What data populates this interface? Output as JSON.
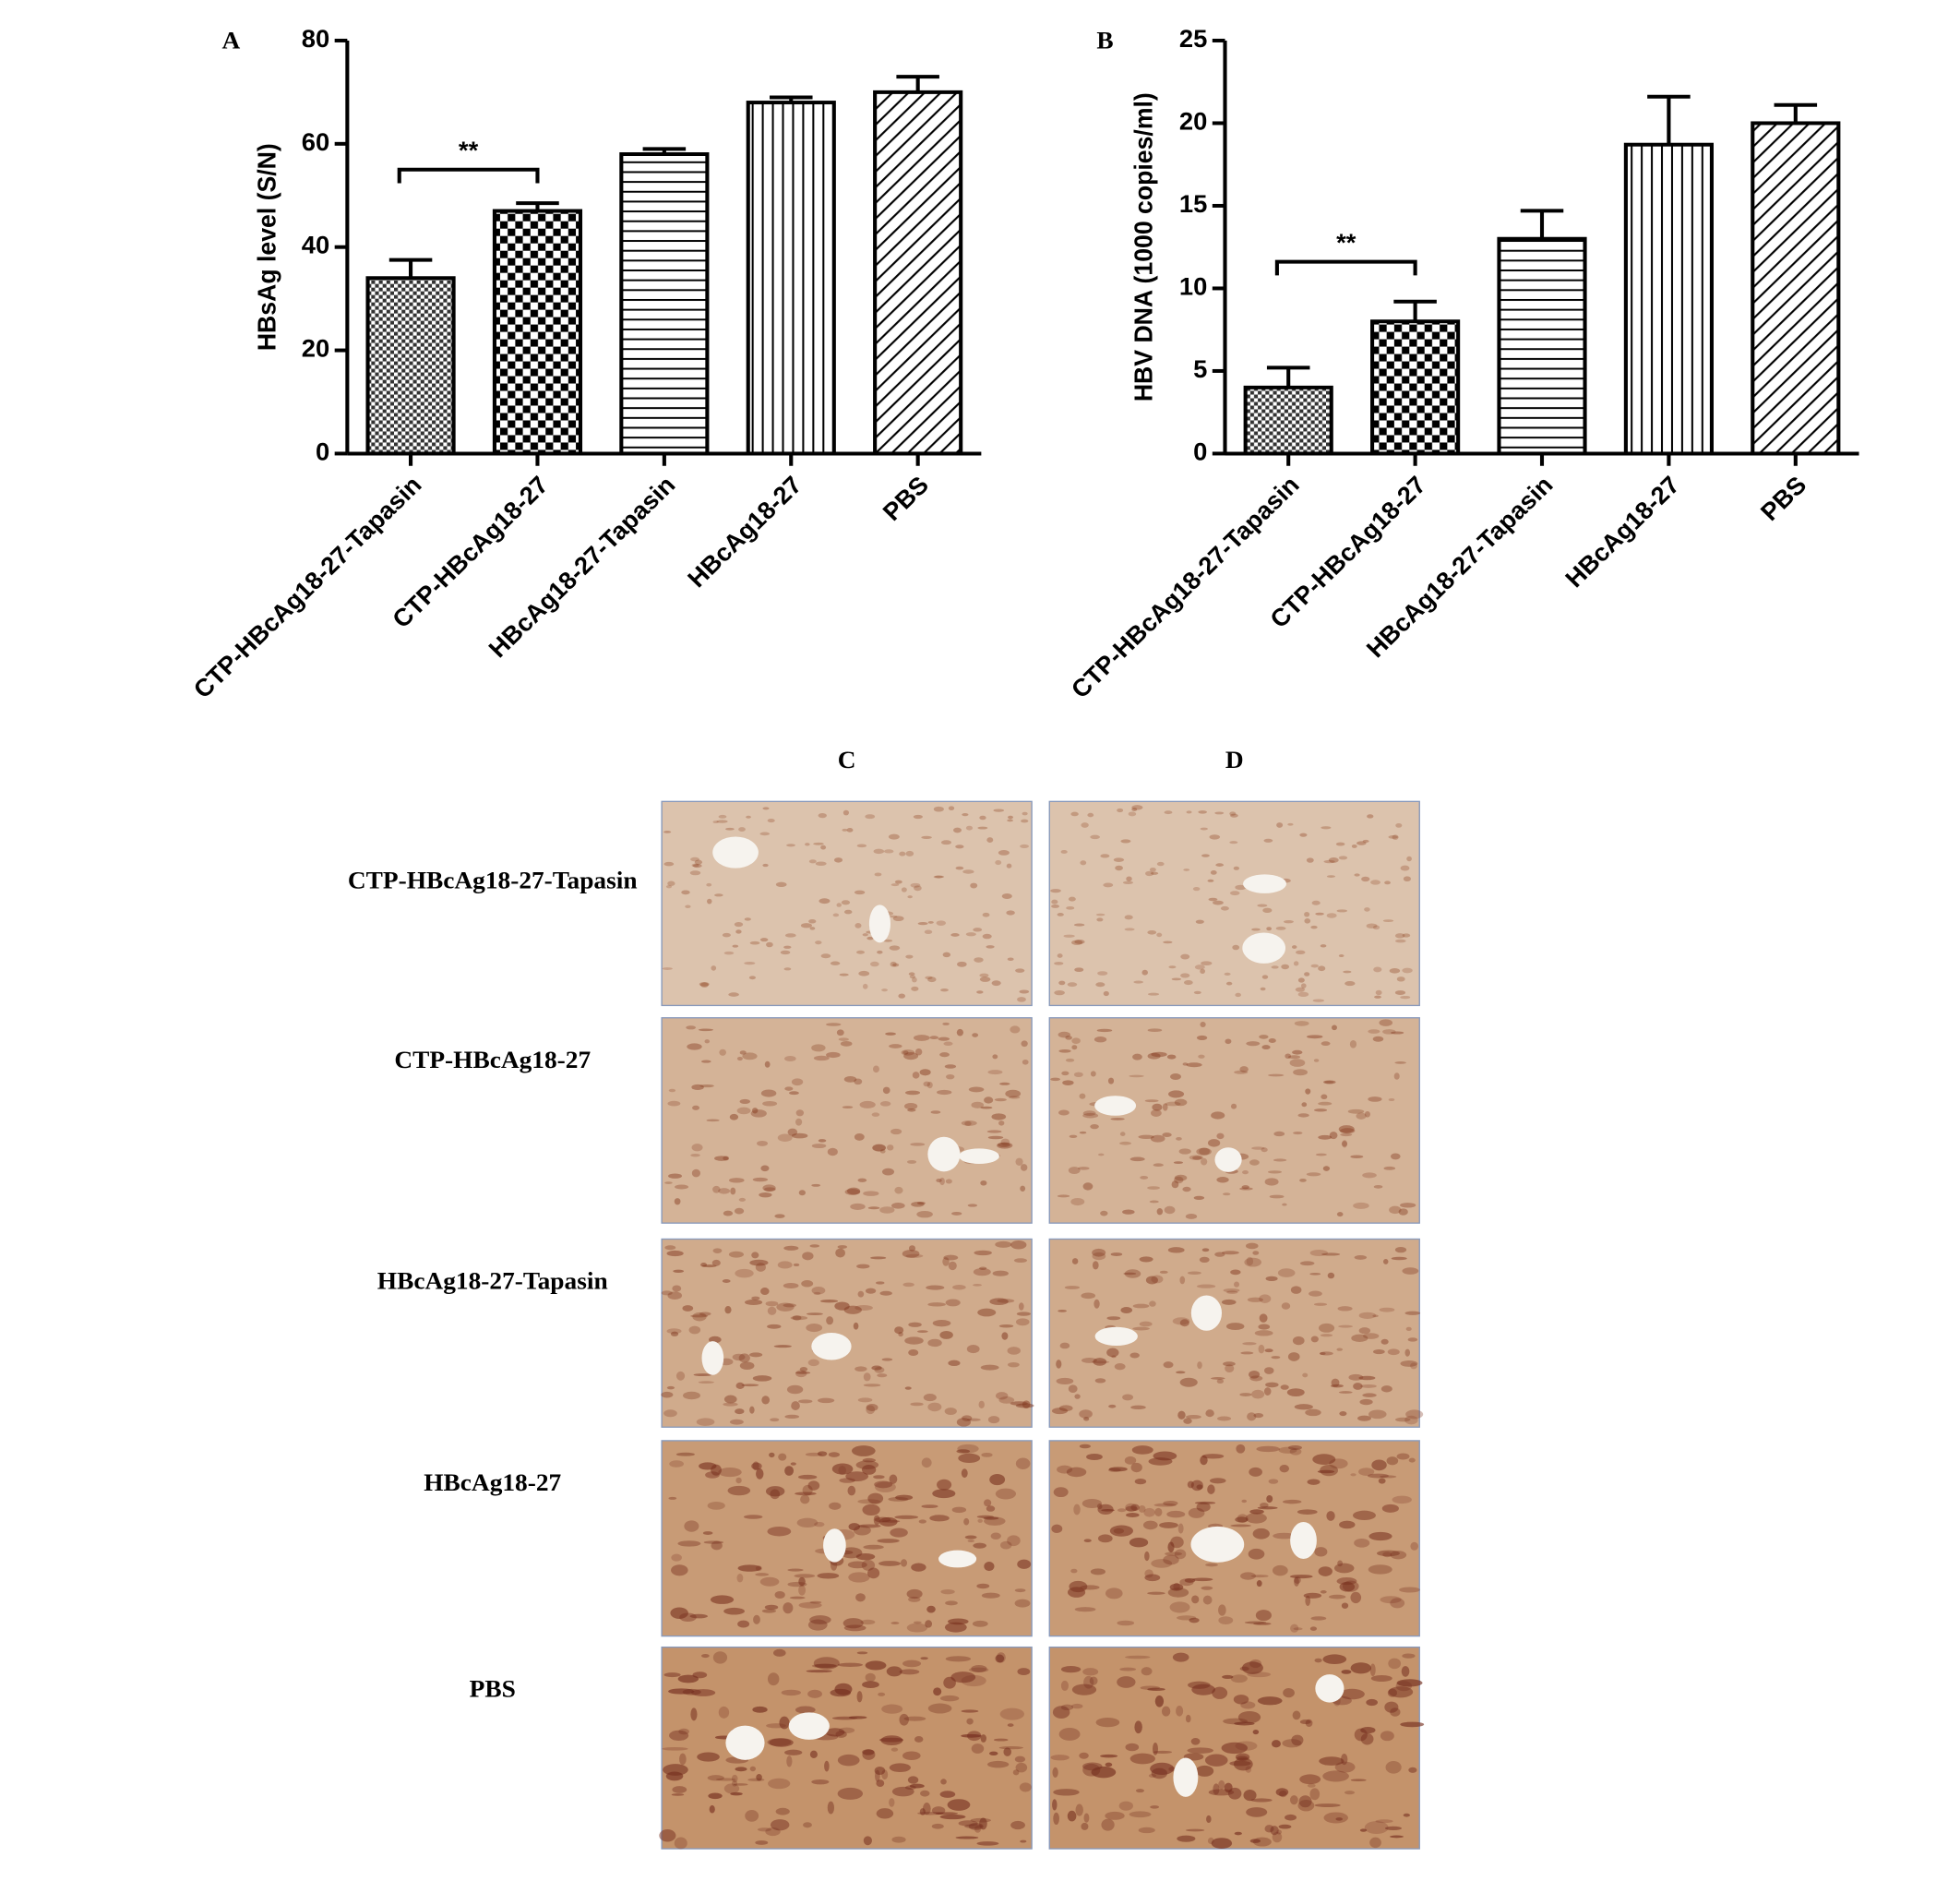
{
  "chart_data": [
    {
      "type": "bar",
      "panel": "A",
      "ylabel": "HBsAg level (S/N)",
      "categories": [
        "CTP-HBcAg18-27-Tapasin",
        "CTP-HBcAg18-27",
        "HBcAg18-27-Tapasin",
        "HBcAg18-27",
        "PBS"
      ],
      "values": [
        34,
        47,
        58,
        68,
        70
      ],
      "errors": [
        3.5,
        1.5,
        1,
        1,
        3
      ],
      "color": "#000000",
      "ylim": [
        0,
        80
      ],
      "yticks": [
        0,
        20,
        40,
        60,
        80
      ],
      "significance": "**"
    },
    {
      "type": "bar",
      "panel": "B",
      "ylabel": "HBV DNA (1000 copies/ml)",
      "categories": [
        "CTP-HBcAg18-27-Tapasin",
        "CTP-HBcAg18-27",
        "HBcAg18-27-Tapasin",
        "HBcAg18-27",
        "PBS"
      ],
      "values": [
        4,
        8,
        13,
        18.7,
        20
      ],
      "errors": [
        1.2,
        1.2,
        1.7,
        2.9,
        1.1
      ],
      "color": "#000000",
      "ylim": [
        0,
        25
      ],
      "yticks": [
        0,
        5,
        10,
        15,
        20,
        25
      ],
      "significance": "**"
    }
  ],
  "histology": {
    "columns": [
      "C",
      "D"
    ],
    "rows": [
      "CTP-HBcAg18-27-Tapasin",
      "CTP-HBcAg18-27",
      "HBcAg18-27-Tapasin",
      "HBcAg18-27",
      "PBS"
    ]
  }
}
